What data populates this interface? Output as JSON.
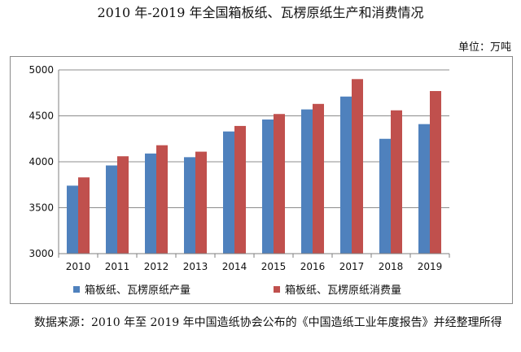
{
  "title": "2010 年-2019 年全国箱板纸、瓦楞原纸生产和消费情况",
  "unit": "单位：万吨",
  "source": "数据来源：2010 年至 2019 年中国造纸协会公布的《中国造纸工业年度报告》并经整理所得",
  "chart_data": {
    "type": "bar",
    "categories": [
      "2010",
      "2011",
      "2012",
      "2013",
      "2014",
      "2015",
      "2016",
      "2017",
      "2018",
      "2019"
    ],
    "series": [
      {
        "name": "箱板纸、瓦楞原纸产量",
        "color": "#4f81bd",
        "values": [
          3740,
          3960,
          4090,
          4050,
          4330,
          4460,
          4570,
          4710,
          4250,
          4410
        ]
      },
      {
        "name": "箱板纸、瓦楞原纸消费量",
        "color": "#c0504d",
        "values": [
          3830,
          4060,
          4180,
          4110,
          4390,
          4520,
          4630,
          4900,
          4560,
          4770
        ]
      }
    ],
    "ylim": [
      3000,
      5000
    ],
    "yticks": [
      3000,
      3500,
      4000,
      4500,
      5000
    ],
    "grid": true,
    "legend": "bottom"
  }
}
